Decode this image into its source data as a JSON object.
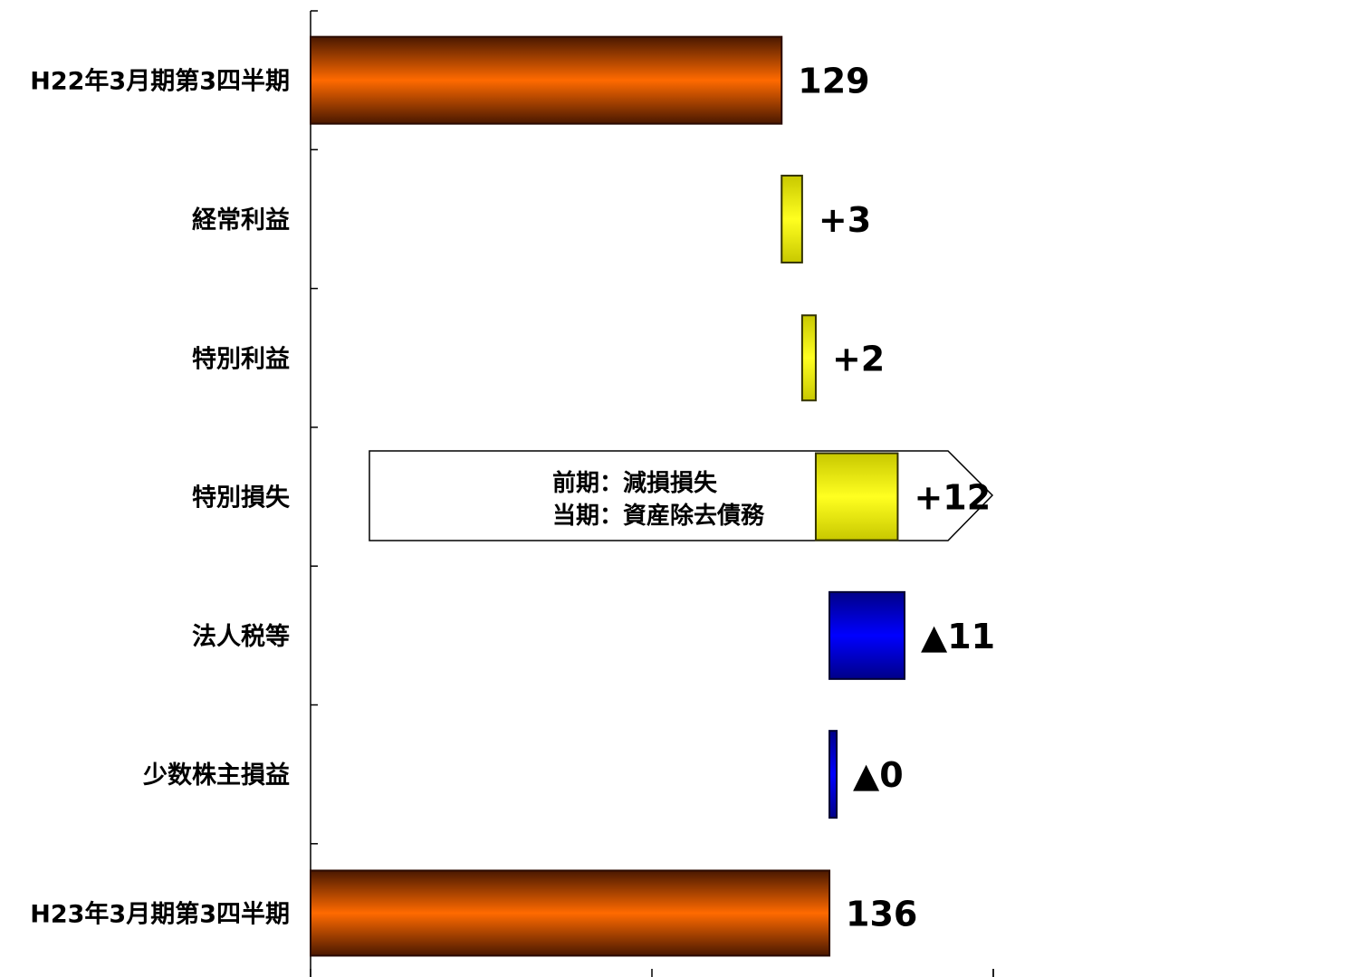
{
  "chart_data": {
    "type": "bar",
    "orientation": "horizontal-waterfall",
    "categories": [
      "H22年3月期第3四半期",
      "経常利益",
      "特別利益",
      "特別損失",
      "法人税等",
      "少数株主損益",
      "H23年3月期第3四半期"
    ],
    "values": [
      129,
      3,
      2,
      12,
      -11,
      0,
      136
    ],
    "value_labels": [
      "129",
      "+3",
      "+2",
      "+12",
      "▲11",
      "▲0",
      "136"
    ],
    "kinds": [
      "total",
      "increase",
      "increase",
      "increase",
      "decrease",
      "decrease",
      "total"
    ],
    "bar_starts": [
      0,
      129,
      132,
      134,
      136,
      136,
      0
    ],
    "bar_ends": [
      129,
      132,
      134,
      146,
      147,
      136.3,
      136
    ],
    "xlim": [
      60,
      160
    ],
    "grid": false,
    "callout": {
      "category": "特別損失",
      "lines": [
        "前期：減損損失",
        "当期：資産除去債務"
      ]
    },
    "colors": {
      "total": "#ff6600",
      "total_edge": "#5a1f00",
      "increase": "#ffff00",
      "increase_edge": "#7a7a00",
      "decrease": "#0000ff",
      "decrease_edge": "#000066"
    }
  }
}
